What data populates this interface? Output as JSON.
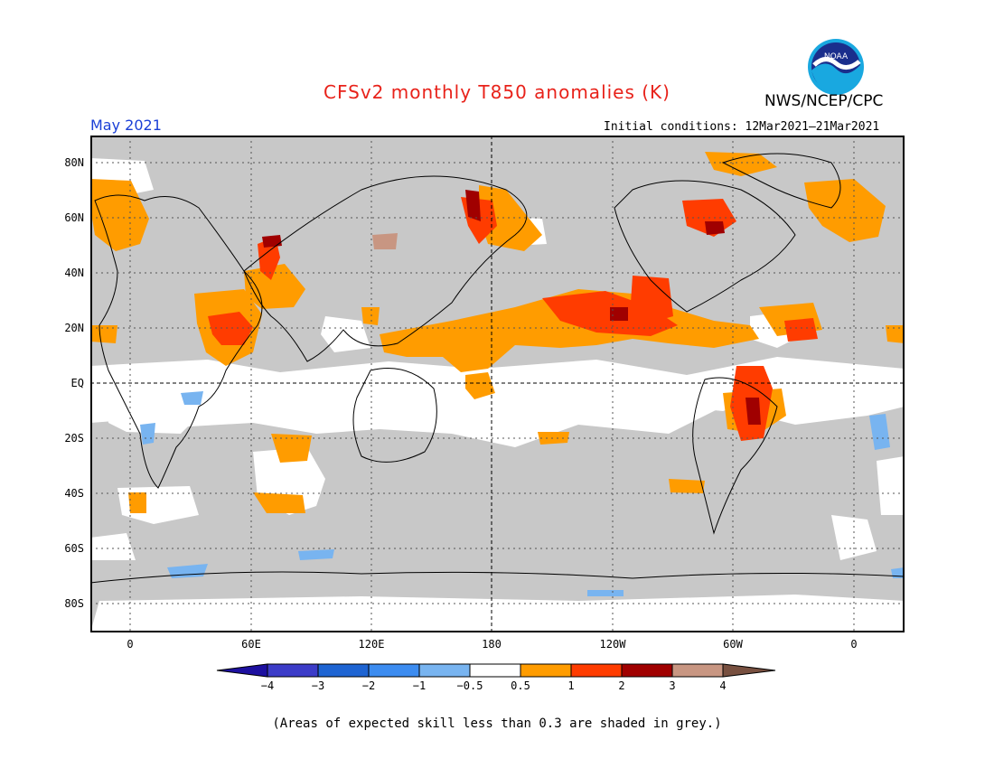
{
  "title": "CFSv2 monthly T850 anomalies (K)",
  "agency": "NWS/NCEP/CPC",
  "logo_text": "NOAA",
  "valid_month": "May 2021",
  "initial_conditions": "Initial conditions: 12Mar2021–21Mar2021",
  "footnote": "(Areas of expected skill less than 0.3 are shaded in grey.)",
  "lat_labels": [
    "80N",
    "60N",
    "40N",
    "20N",
    "EQ",
    "20S",
    "40S",
    "60S",
    "80S"
  ],
  "lon_labels": [
    "0",
    "60E",
    "120E",
    "180",
    "120W",
    "60W",
    "0"
  ],
  "colorbar": {
    "labels": [
      "−4",
      "−3",
      "−2",
      "−1",
      "−0.5",
      "0.5",
      "1",
      "2",
      "3",
      "4"
    ],
    "colors": [
      "#1d10a0",
      "#3c3cc8",
      "#1e64d2",
      "#3c8cf0",
      "#78b4f0",
      "#ffffff",
      "#ff9c00",
      "#ff3c00",
      "#a00000",
      "#c89682",
      "#785040"
    ]
  },
  "skill_mask_color": "#c8c8c8"
}
